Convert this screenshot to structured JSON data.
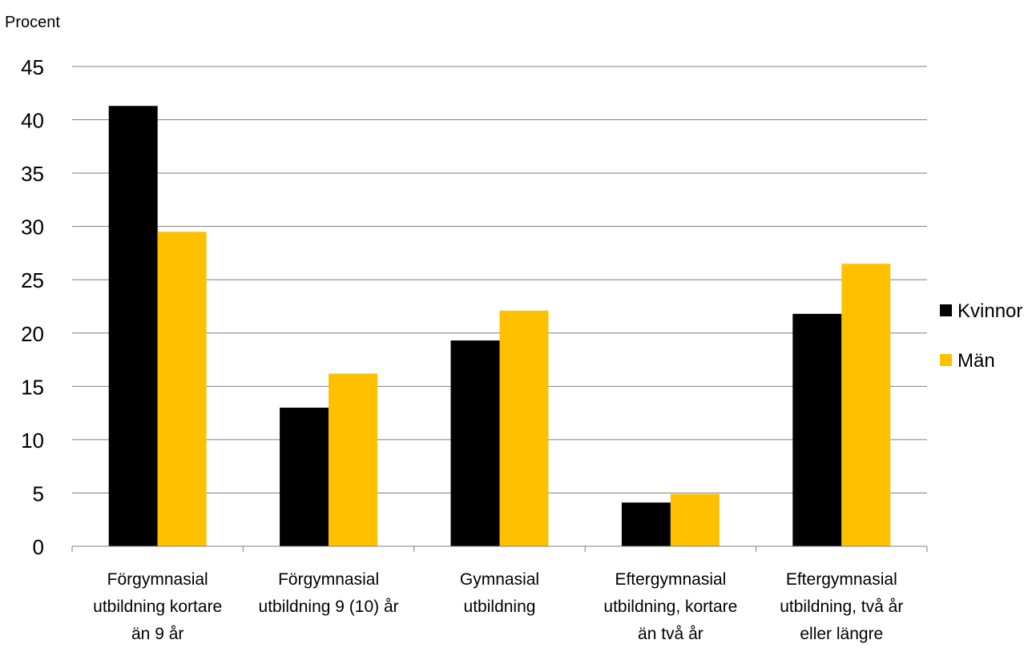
{
  "chart_data": {
    "type": "bar",
    "ylabel": "Procent",
    "ylim": [
      0,
      45
    ],
    "yticks": [
      "0",
      "5",
      "10",
      "15",
      "20",
      "25",
      "30",
      "35",
      "40",
      "45"
    ],
    "grid": true,
    "legend_position": "right",
    "categories": [
      [
        "Förgymnasial",
        "utbildning kortare",
        "än 9 år"
      ],
      [
        "Förgymnasial",
        "utbildning 9 (10) år"
      ],
      [
        "Gymnasial",
        "utbildning"
      ],
      [
        "Eftergymnasial",
        "utbildning, kortare",
        "än två år"
      ],
      [
        "Eftergymnasial",
        "utbildning, två år",
        "eller längre"
      ]
    ],
    "series": [
      {
        "name": "Kvinnor",
        "color": "#000000",
        "values": [
          41.3,
          13.0,
          19.3,
          4.1,
          21.8
        ]
      },
      {
        "name": "Män",
        "color": "#FFC000",
        "values": [
          29.5,
          16.2,
          22.1,
          4.9,
          26.5
        ]
      }
    ]
  }
}
